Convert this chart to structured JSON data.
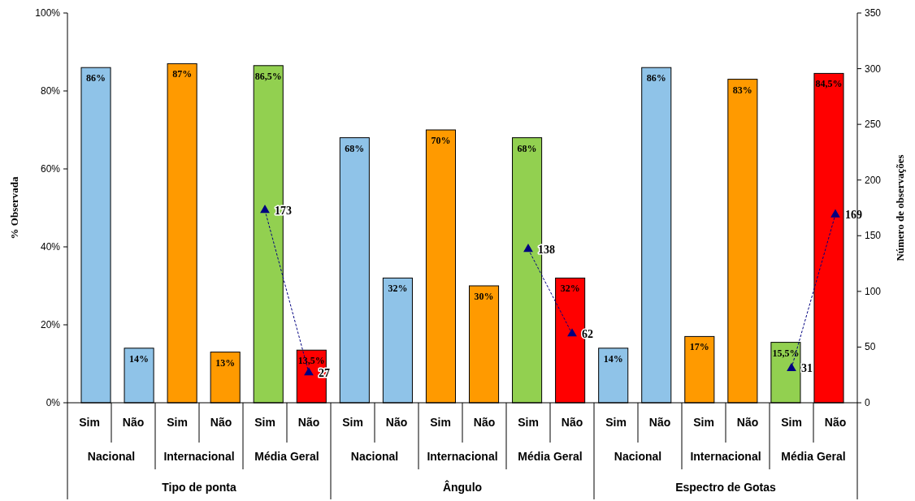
{
  "chart_data": {
    "type": "bar",
    "ylabel": "% Observada",
    "y2label": "Número de observações",
    "categories": [
      "Sim",
      "Não",
      "Sim",
      "Não",
      "Sim",
      "Não",
      "Sim",
      "Não",
      "Sim",
      "Não",
      "Sim",
      "Não",
      "Sim",
      "Não",
      "Sim",
      "Não",
      "Sim",
      "Não"
    ],
    "series": [
      {
        "values": [
          86,
          14,
          87,
          13,
          86.5,
          13.5,
          68,
          32,
          70,
          30,
          68,
          32,
          14,
          86,
          17,
          83,
          15.5,
          84.5
        ],
        "colors": [
          "#8fc3e8",
          "#8fc3e8",
          "#ff9a00",
          "#ff9a00",
          "#92d050",
          "#ff0000",
          "#8fc3e8",
          "#8fc3e8",
          "#ff9a00",
          "#ff9a00",
          "#92d050",
          "#ff0000",
          "#8fc3e8",
          "#8fc3e8",
          "#ff9a00",
          "#ff9a00",
          "#92d050",
          "#ff0000"
        ],
        "value_labels": [
          "86%",
          "14%",
          "87%",
          "13%",
          "86,5%",
          "13,5%",
          "68%",
          "32%",
          "70%",
          "30%",
          "68%",
          "32%",
          "14%",
          "86%",
          "17%",
          "83%",
          "15,5%",
          "84,5%"
        ]
      },
      {
        "type": "line",
        "axis": "y2",
        "color": "#000080",
        "marker": "triangle",
        "line_style": "dashed",
        "values": [
          null,
          null,
          null,
          null,
          173,
          27,
          null,
          null,
          null,
          null,
          138,
          62,
          null,
          null,
          null,
          null,
          31,
          169
        ],
        "value_labels": [
          null,
          null,
          null,
          null,
          "173",
          "27",
          null,
          null,
          null,
          null,
          "138",
          "62",
          null,
          null,
          null,
          null,
          "31",
          "169"
        ]
      }
    ],
    "ylim": [
      0,
      100
    ],
    "yticks": [
      {
        "value": 0,
        "label": "0%"
      },
      {
        "value": 20,
        "label": "20%"
      },
      {
        "value": 40,
        "label": "40%"
      },
      {
        "value": 60,
        "label": "60%"
      },
      {
        "value": 80,
        "label": "80%"
      },
      {
        "value": 100,
        "label": "100%"
      }
    ],
    "y2lim": [
      0,
      350
    ],
    "y2ticks": [
      0,
      50,
      100,
      150,
      200,
      250,
      300,
      350
    ],
    "grid": false,
    "annotations": [
      "Nacional",
      "Internacional",
      "Média Geral",
      "Nacional",
      "Internacional",
      "Média Geral",
      "Nacional",
      "Internacional",
      "Média Geral",
      "Tipo de ponta",
      "Ângulo",
      "Espectro de Gotas"
    ]
  }
}
